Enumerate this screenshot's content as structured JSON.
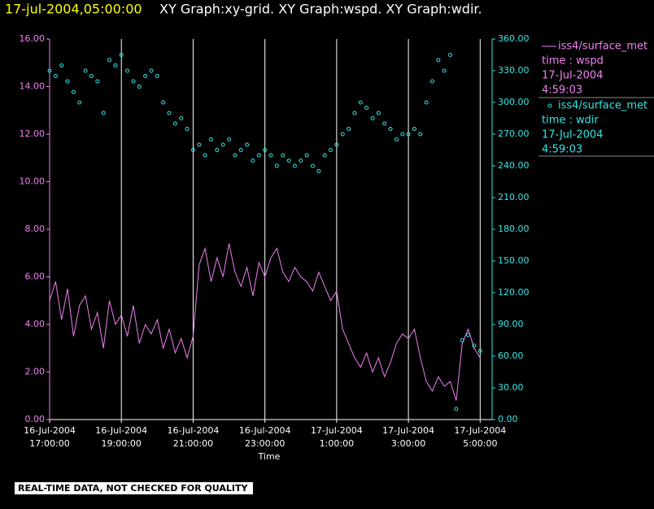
{
  "chart_data": {
    "type": "xy",
    "title_time": "17-jul-2004,05:00:00",
    "title": "XY Graph:xy-grid.  XY Graph:wspd.  XY Graph:wdir.",
    "x_label": "Time",
    "footer": "REAL-TIME DATA, NOT CHECKED FOR QUALITY",
    "grid": true,
    "xlim": [
      "2004-07-16T17:00",
      "2004-07-17T05:20"
    ],
    "xticks": [
      {
        "value": "2004-07-16T17:00",
        "label": [
          "16-Jul-2004",
          "17:00:00"
        ]
      },
      {
        "value": "2004-07-16T19:00",
        "label": [
          "16-Jul-2004",
          "19:00:00"
        ]
      },
      {
        "value": "2004-07-16T21:00",
        "label": [
          "16-Jul-2004",
          "21:00:00"
        ]
      },
      {
        "value": "2004-07-16T23:00",
        "label": [
          "16-Jul-2004",
          "23:00:00"
        ]
      },
      {
        "value": "2004-07-17T01:00",
        "label": [
          "17-Jul-2004",
          "1:00:00"
        ]
      },
      {
        "value": "2004-07-17T03:00",
        "label": [
          "17-Jul-2004",
          "3:00:00"
        ]
      },
      {
        "value": "2004-07-17T05:00",
        "label": [
          "17-Jul-2004",
          "5:00:00"
        ]
      }
    ],
    "ylim": [
      0,
      16
    ],
    "yticks": [
      {
        "value": 0,
        "label": "0.00"
      },
      {
        "value": 2,
        "label": "2.00"
      },
      {
        "value": 4,
        "label": "4.00"
      },
      {
        "value": 6,
        "label": "6.00"
      },
      {
        "value": 8,
        "label": "8.00"
      },
      {
        "value": 10,
        "label": "10.00"
      },
      {
        "value": 12,
        "label": "12.00"
      },
      {
        "value": 14,
        "label": "14.00"
      },
      {
        "value": 16,
        "label": "16.00"
      }
    ],
    "y2lim": [
      0,
      360
    ],
    "y2ticks": [
      {
        "value": 0,
        "label": "0.00"
      },
      {
        "value": 30,
        "label": "30.00"
      },
      {
        "value": 60,
        "label": "60.00"
      },
      {
        "value": 90,
        "label": "90.00"
      },
      {
        "value": 120,
        "label": "120.00"
      },
      {
        "value": 150,
        "label": "150.00"
      },
      {
        "value": 180,
        "label": "180.00"
      },
      {
        "value": 210,
        "label": "210.00"
      },
      {
        "value": 240,
        "label": "240.00"
      },
      {
        "value": 270,
        "label": "270.00"
      },
      {
        "value": 300,
        "label": "300.00"
      },
      {
        "value": 330,
        "label": "330.00"
      },
      {
        "value": 360,
        "label": "360.00"
      }
    ],
    "x": [
      "2004-07-16T17:00",
      "2004-07-16T17:10",
      "2004-07-16T17:20",
      "2004-07-16T17:30",
      "2004-07-16T17:40",
      "2004-07-16T17:50",
      "2004-07-16T18:00",
      "2004-07-16T18:10",
      "2004-07-16T18:20",
      "2004-07-16T18:30",
      "2004-07-16T18:40",
      "2004-07-16T18:50",
      "2004-07-16T19:00",
      "2004-07-16T19:10",
      "2004-07-16T19:20",
      "2004-07-16T19:30",
      "2004-07-16T19:40",
      "2004-07-16T19:50",
      "2004-07-16T20:00",
      "2004-07-16T20:10",
      "2004-07-16T20:20",
      "2004-07-16T20:30",
      "2004-07-16T20:40",
      "2004-07-16T20:50",
      "2004-07-16T21:00",
      "2004-07-16T21:10",
      "2004-07-16T21:20",
      "2004-07-16T21:30",
      "2004-07-16T21:40",
      "2004-07-16T21:50",
      "2004-07-16T22:00",
      "2004-07-16T22:10",
      "2004-07-16T22:20",
      "2004-07-16T22:30",
      "2004-07-16T22:40",
      "2004-07-16T22:50",
      "2004-07-16T23:00",
      "2004-07-16T23:10",
      "2004-07-16T23:20",
      "2004-07-16T23:30",
      "2004-07-16T23:40",
      "2004-07-16T23:50",
      "2004-07-17T00:00",
      "2004-07-17T00:10",
      "2004-07-17T00:20",
      "2004-07-17T00:30",
      "2004-07-17T00:40",
      "2004-07-17T00:50",
      "2004-07-17T01:00",
      "2004-07-17T01:10",
      "2004-07-17T01:20",
      "2004-07-17T01:30",
      "2004-07-17T01:40",
      "2004-07-17T01:50",
      "2004-07-17T02:00",
      "2004-07-17T02:10",
      "2004-07-17T02:20",
      "2004-07-17T02:30",
      "2004-07-17T02:40",
      "2004-07-17T02:50",
      "2004-07-17T03:00",
      "2004-07-17T03:10",
      "2004-07-17T03:20",
      "2004-07-17T03:30",
      "2004-07-17T03:40",
      "2004-07-17T03:50",
      "2004-07-17T04:00",
      "2004-07-17T04:10",
      "2004-07-17T04:20",
      "2004-07-17T04:30",
      "2004-07-17T04:40",
      "2004-07-17T04:50",
      "2004-07-17T05:00"
    ],
    "series": [
      {
        "name": "iss4/surface_met",
        "legend_lines": [
          "time : wspd",
          "17-Jul-2004",
          "4:59:03"
        ],
        "kind": "line",
        "color": "#ee82ee",
        "values": [
          5.0,
          5.8,
          4.2,
          5.5,
          3.5,
          4.8,
          5.2,
          3.8,
          4.5,
          3.0,
          5.0,
          4.0,
          4.4,
          3.5,
          4.8,
          3.2,
          4.0,
          3.6,
          4.2,
          3.0,
          3.8,
          2.8,
          3.4,
          2.6,
          3.5,
          6.5,
          7.2,
          5.8,
          6.8,
          6.0,
          7.4,
          6.2,
          5.6,
          6.4,
          5.2,
          6.6,
          6.0,
          6.8,
          7.2,
          6.2,
          5.8,
          6.4,
          6.0,
          5.8,
          5.4,
          6.2,
          5.6,
          5.0,
          5.4,
          3.8,
          3.2,
          2.6,
          2.2,
          2.8,
          2.0,
          2.6,
          1.8,
          2.4,
          3.2,
          3.6,
          3.4,
          3.8,
          2.6,
          1.6,
          1.2,
          1.8,
          1.4,
          1.6,
          0.8,
          3.2,
          3.8,
          3.0,
          2.6
        ]
      },
      {
        "name": "iss4/surface_met",
        "legend_lines": [
          "time : wdir",
          "17-Jul-2004",
          "4:59:03"
        ],
        "kind": "scatter",
        "axis": "y2",
        "color": "#33e6e6",
        "values": [
          330,
          325,
          335,
          320,
          310,
          300,
          330,
          325,
          320,
          290,
          340,
          335,
          345,
          330,
          320,
          315,
          325,
          330,
          325,
          300,
          290,
          280,
          285,
          275,
          255,
          260,
          250,
          265,
          255,
          260,
          265,
          250,
          255,
          260,
          245,
          250,
          255,
          250,
          240,
          250,
          245,
          240,
          245,
          250,
          240,
          235,
          250,
          255,
          260,
          270,
          275,
          290,
          300,
          295,
          285,
          290,
          280,
          275,
          265,
          270,
          270,
          275,
          270,
          300,
          320,
          340,
          330,
          345,
          10,
          75,
          80,
          70,
          65
        ]
      }
    ]
  }
}
